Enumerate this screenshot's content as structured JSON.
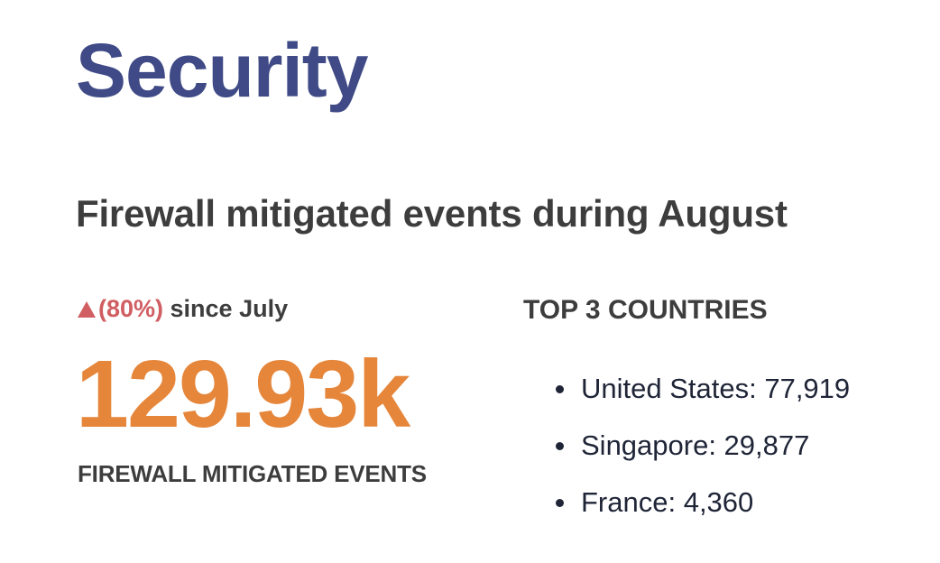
{
  "page": {
    "title": "Security",
    "subtitle": "Firewall mitigated events during August"
  },
  "metric": {
    "trend_icon": "up-arrow-icon",
    "change_percent": "(80%)",
    "change_suffix": " since July",
    "value": "129.93k",
    "label": "FIREWALL MITIGATED EVENTS"
  },
  "countries": {
    "heading": "TOP 3 COUNTRIES",
    "items": [
      {
        "name": "United States",
        "value": "77,919",
        "text": "United States: 77,919"
      },
      {
        "name": "Singapore",
        "value": "29,877",
        "text": "Singapore: 29,877"
      },
      {
        "name": "France",
        "value": "4,360",
        "text": "France: 4,360"
      }
    ]
  },
  "colors": {
    "title": "#3f4a86",
    "text": "#3d3d3d",
    "increase": "#d05e62",
    "metric_value": "#e5863b",
    "list_text": "#1f2537"
  }
}
